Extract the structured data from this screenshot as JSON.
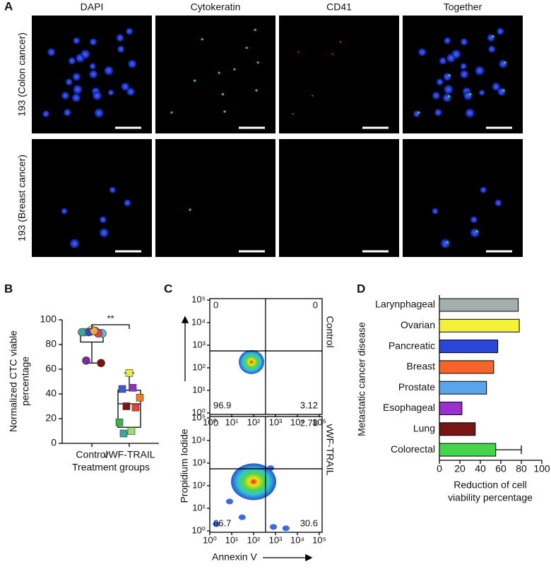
{
  "panel_a": {
    "panel": "A",
    "columns": [
      "DAPI",
      "Cytokeratin",
      "CD41",
      "Together"
    ],
    "rows": [
      "193 (Colon cancer)",
      "193 (Breast cancer)"
    ]
  },
  "chart_data": [
    {
      "type": "box",
      "panel": "B",
      "ylabel": [
        "Normalized CTC viable",
        "percentage"
      ],
      "xlabel": "Treatment groups",
      "categories": [
        "Control",
        "vWF-TRAIL"
      ],
      "ylim": [
        0,
        100
      ],
      "yticks": [
        0,
        20,
        40,
        60,
        80,
        100
      ],
      "boxes": [
        {
          "min": 65,
          "q1": 82,
          "median": 88,
          "q3": 92,
          "max": 93
        },
        {
          "min": 8,
          "q1": 13,
          "median": 32,
          "q3": 43,
          "max": 57
        }
      ],
      "markers": [
        "circle",
        "square"
      ],
      "points": [
        [
          92,
          91,
          90,
          89,
          90,
          89,
          90,
          91,
          67,
          65
        ],
        [
          57,
          45,
          44,
          37,
          30,
          29,
          17,
          10,
          8
        ]
      ],
      "point_colors": [
        [
          "#f2ee3a",
          "#3ab54a",
          "#f7941d",
          "#6ab0e6",
          "#2e49c9",
          "#e8403a",
          "#3aa6a0",
          "#f9a64a",
          "#7a2ca0",
          "#7a1515"
        ],
        [
          "#e6e83a",
          "#8a35c4",
          "#3b5bd8",
          "#f47a20",
          "#7a1515",
          "#e8403a",
          "#3ab54a",
          "#9adf6a",
          "#3aa6a0"
        ]
      ],
      "annotation": "**"
    },
    {
      "type": "flow",
      "panel": "C",
      "ylabel": "Propidium Iodide",
      "xlabel": "Annexin V",
      "xscale": "log",
      "yscale": "log",
      "xlim": [
        1,
        100000
      ],
      "ylim": [
        1,
        100000
      ],
      "xticks": [
        {
          "value": 1,
          "label": "10⁰"
        },
        {
          "value": 10,
          "label": "10¹"
        },
        {
          "value": 100,
          "label": "10²"
        },
        {
          "value": 1000,
          "label": "10³"
        },
        {
          "value": 10000,
          "label": "10⁴"
        },
        {
          "value": 100000,
          "label": "10⁵"
        }
      ],
      "yticks": [
        {
          "value": 1,
          "label": "10⁰"
        },
        {
          "value": 10,
          "label": "10¹"
        },
        {
          "value": 100,
          "label": "10²"
        },
        {
          "value": 1000,
          "label": "10³"
        },
        {
          "value": 10000,
          "label": "10⁴"
        },
        {
          "value": 100000,
          "label": "10⁵"
        }
      ],
      "xgate": 350,
      "ygate": 560,
      "plots": [
        {
          "name": "Control",
          "quadrants": [
            0,
            0,
            96.9,
            3.12
          ]
        },
        {
          "name": "vWF-TRAIL",
          "quadrants": [
            0,
            2.78,
            66.7,
            30.6
          ]
        }
      ]
    },
    {
      "type": "hbar",
      "panel": "D",
      "ylabel": "Metastatic cancer disease",
      "xlabel": [
        "Reduction of cell",
        "viability percentage"
      ],
      "categories": [
        "Larynphageal",
        "Ovarian",
        "Pancreatic",
        "Breast",
        "Prostate",
        "Esophageal",
        "Lung",
        "Colorectal"
      ],
      "values": [
        77,
        78,
        57,
        53,
        46,
        22,
        35,
        55
      ],
      "errors": [
        null,
        null,
        null,
        null,
        null,
        null,
        null,
        25
      ],
      "colors": [
        "#a3b0ae",
        "#f2f23a",
        "#2a45d8",
        "#f7642a",
        "#5aa4ec",
        "#9a30d0",
        "#7a1515",
        "#44d64a"
      ],
      "xlim": [
        0,
        100
      ],
      "xticks": [
        0,
        20,
        40,
        60,
        80,
        100
      ]
    }
  ]
}
